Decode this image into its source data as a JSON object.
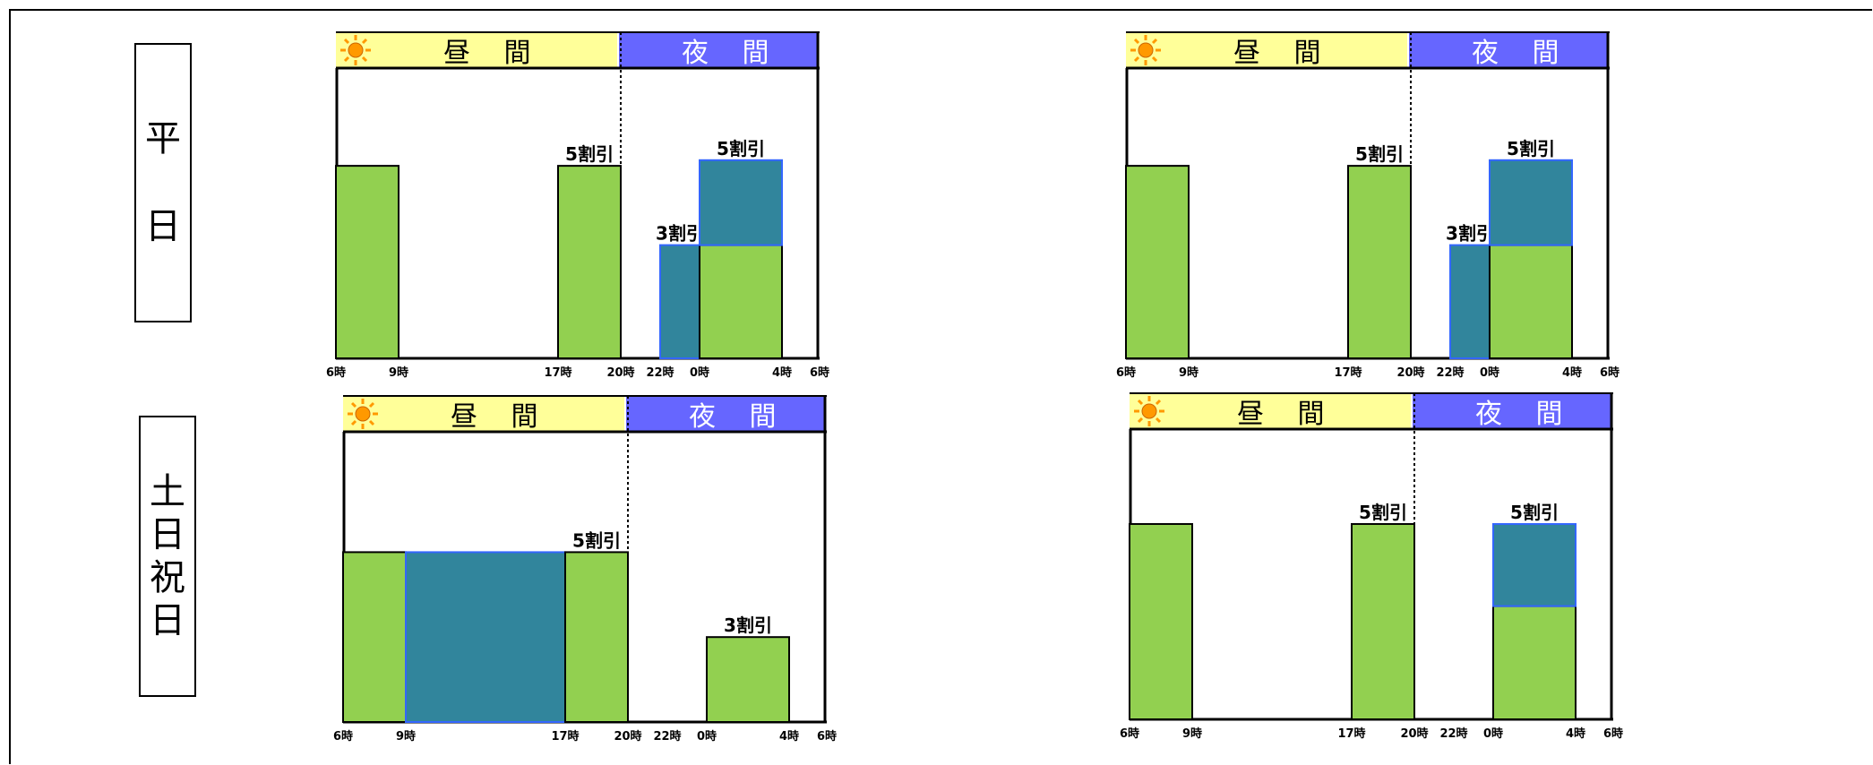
{
  "row_labels": {
    "weekday": "平日",
    "holiday": "土日祝日"
  },
  "band_labels": {
    "day": "昼 間",
    "night": "夜 間"
  },
  "icons": {
    "day": "sun-icon",
    "night": "crescent-moon-icon"
  },
  "colors": {
    "green": "#92d050",
    "teal": "#31859c",
    "day_band": "#ffff99",
    "night_band": "#6666ff",
    "teal_border": "#3366ff"
  },
  "tick_labels": [
    "6時",
    "9時",
    "17時",
    "20時",
    "22時",
    "0時",
    "4時",
    "6時"
  ],
  "chart_data": [
    {
      "type": "bar",
      "panel": "top-left",
      "ticks": [
        "6時",
        "9時",
        "17時",
        "20時",
        "22時",
        "0時",
        "4時",
        "6時"
      ],
      "bars": [
        {
          "from": "6時",
          "to": "9時",
          "layer": "green",
          "level": 0.68
        },
        {
          "from": "17時",
          "to": "20時",
          "layer": "green",
          "level": 0.68,
          "label": "5割引"
        },
        {
          "from": "22時",
          "to": "0時",
          "layer": "teal",
          "level": 0.4,
          "label": "3割引"
        },
        {
          "from": "0時",
          "to": "4時",
          "layer": "green",
          "level": 0.4
        },
        {
          "from": "0時",
          "to": "4時",
          "layer": "teal",
          "level_from": 0.4,
          "level": 0.7,
          "label": "5割引"
        }
      ]
    },
    {
      "type": "bar",
      "panel": "top-right",
      "ticks": [
        "6時",
        "9時",
        "17時",
        "20時",
        "22時",
        "0時",
        "4時",
        "6時"
      ],
      "bars": [
        {
          "from": "6時",
          "to": "9時",
          "layer": "green",
          "level": 0.68
        },
        {
          "from": "17時",
          "to": "20時",
          "layer": "green",
          "level": 0.68,
          "label": "5割引"
        },
        {
          "from": "22時",
          "to": "0時",
          "layer": "teal",
          "level": 0.4,
          "label": "3割引"
        },
        {
          "from": "0時",
          "to": "4時",
          "layer": "green",
          "level": 0.4
        },
        {
          "from": "0時",
          "to": "4時",
          "layer": "teal",
          "level_from": 0.4,
          "level": 0.7,
          "label": "5割引"
        }
      ]
    },
    {
      "type": "bar",
      "panel": "bottom-left",
      "ticks": [
        "6時",
        "9時",
        "17時",
        "20時",
        "22時",
        "0時",
        "4時",
        "6時"
      ],
      "bars": [
        {
          "from": "6時",
          "to": "9時",
          "layer": "green",
          "level": 0.6
        },
        {
          "from": "9時",
          "to": "17時",
          "layer": "teal",
          "level": 0.6
        },
        {
          "from": "17時",
          "to": "20時",
          "layer": "green",
          "level": 0.6,
          "label": "5割引"
        },
        {
          "from": "0時",
          "to": "4時",
          "layer": "green",
          "level": 0.3,
          "label": "3割引"
        }
      ]
    },
    {
      "type": "bar",
      "panel": "bottom-right",
      "ticks": [
        "6時",
        "9時",
        "17時",
        "20時",
        "22時",
        "0時",
        "4時",
        "6時"
      ],
      "bars": [
        {
          "from": "6時",
          "to": "9時",
          "layer": "green",
          "level": 0.69
        },
        {
          "from": "17時",
          "to": "20時",
          "layer": "green",
          "level": 0.69,
          "label": "5割引"
        },
        {
          "from": "0時",
          "to": "4時",
          "layer": "green",
          "level": 0.4
        },
        {
          "from": "0時",
          "to": "4時",
          "layer": "teal",
          "level_from": 0.4,
          "level": 0.69,
          "label": "5割引"
        }
      ]
    }
  ]
}
